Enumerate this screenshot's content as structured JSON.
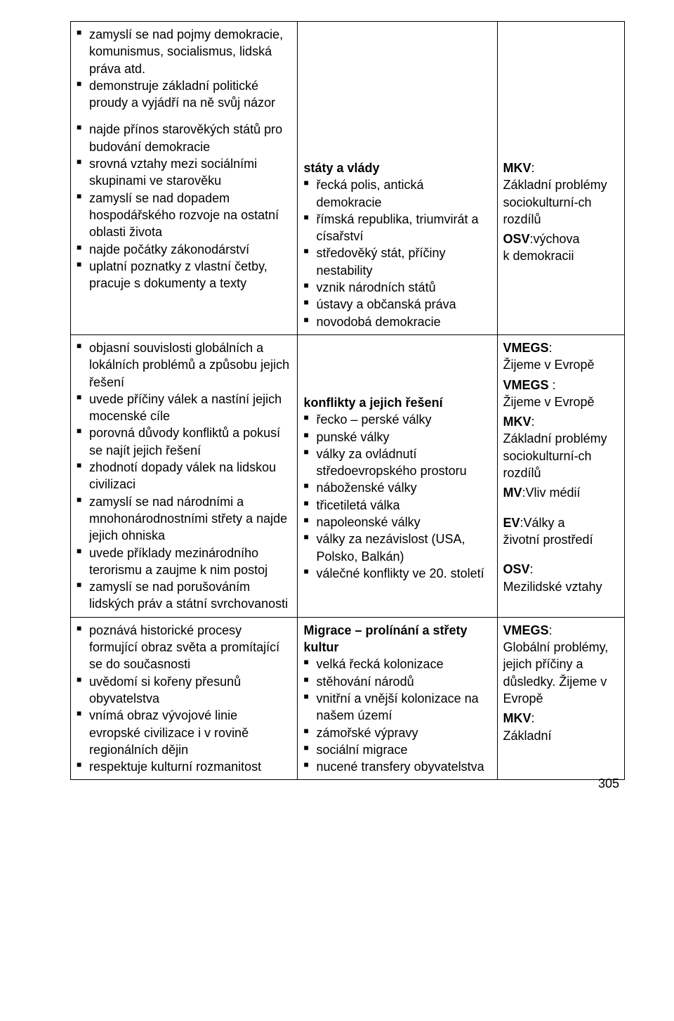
{
  "page_number": "305",
  "colors": {
    "text": "#000000",
    "border": "#000000",
    "background": "#ffffff"
  },
  "rows": [
    {
      "c1": {
        "groups": [
          {
            "items": [
              "zamyslí se nad pojmy demokracie, komunismus, socialismus, lidská práva atd.",
              "demonstruje základní politické proudy a vyjádří na ně svůj názor"
            ]
          },
          {
            "items": [
              "najde přínos starověkých států pro budování demokracie",
              "srovná vztahy mezi sociálními skupinami ve starověku",
              "zamyslí se nad dopadem hospodářského rozvoje na ostatní oblasti života",
              "najde počátky zákonodárství",
              "uplatní poznatky z vlastní četby, pracuje s dokumenty a texty"
            ]
          }
        ]
      },
      "c2": {
        "heading": "státy a vlády",
        "items": [
          "řecká polis, antická demokracie",
          "římská republika, triumvirát a císařství",
          "středověký stát, příčiny nestability",
          "vznik národních států",
          "ústavy a občanská práva",
          "novodobá demokracie"
        ]
      },
      "c3": {
        "blocks": [
          {
            "label": "MKV",
            "after_label": ":",
            "text": "Základní problémy sociokulturní-ch rozdílů"
          },
          {
            "label": "OSV",
            "after_label": ":výchova",
            "text": "k demokracii"
          }
        ]
      }
    },
    {
      "c1": {
        "groups": [
          {
            "items": [
              "objasní souvislosti globálních a lokálních problémů a způsobu jejich řešení",
              "uvede příčiny válek a nastíní jejich mocenské cíle",
              "porovná důvody konfliktů a pokusí se najít jejich řešení",
              "zhodnotí dopady válek na lidskou civilizaci",
              "zamyslí se nad národními a mnohonárodnostními střety a najde jejich ohniska",
              "uvede příklady mezinárodního terorismu a zaujme k nim postoj",
              "zamyslí se nad porušováním lidských práv a státní svrchovanosti"
            ]
          }
        ]
      },
      "c2": {
        "heading": "konflikty a jejich řešení",
        "items": [
          "řecko – perské války",
          "punské války",
          "války za ovládnutí středoevropského prostoru",
          "náboženské války",
          "třicetiletá válka",
          "napoleonské války",
          "války za nezávislost (USA, Polsko, Balkán)",
          "válečné konflikty ve 20. století"
        ]
      },
      "c3": {
        "pre_blocks": [
          {
            "label": "VMEGS",
            "after_label": ":",
            "text": "Žijeme v Evropě"
          }
        ],
        "blocks": [
          {
            "label": "VMEGS ",
            "after_label": ":",
            "text": "Žijeme v Evropě"
          },
          {
            "label": "MKV",
            "after_label": ":",
            "text": "Základní problémy sociokulturní-ch rozdílů"
          },
          {
            "label": "MV",
            "after_label": ":Vliv médií",
            "text": ""
          },
          {
            "label": "EV",
            "after_label": ":Války a",
            "text": "životní prostředí",
            "pre_gap": true
          },
          {
            "label": "OSV",
            "after_label": ":",
            "text": "Mezilidské vztahy",
            "pre_gap": true
          }
        ]
      }
    },
    {
      "c1": {
        "groups": [
          {
            "items": [
              "poznává historické procesy formující obraz světa a promítající se do současnosti",
              "uvědomí si kořeny přesunů obyvatelstva",
              "vnímá obraz vývojové linie evropské civilizace i v rovině regionálních dějin",
              "respektuje kulturní rozmanitost"
            ]
          }
        ]
      },
      "c2": {
        "heading": "Migrace – prolínání a střety kultur",
        "items": [
          "velká řecká kolonizace",
          "stěhování národů",
          "vnitřní a vnější kolonizace na našem území",
          "zámořské výpravy",
          "sociální migrace",
          "nucené transfery obyvatelstva"
        ]
      },
      "c3": {
        "blocks": [
          {
            "label": "VMEGS",
            "after_label": ":",
            "text": "Globální problémy, jejich příčiny a důsledky. Žijeme v Evropě"
          },
          {
            "label": "MKV",
            "after_label": ":",
            "text": "Základní"
          }
        ]
      }
    }
  ]
}
